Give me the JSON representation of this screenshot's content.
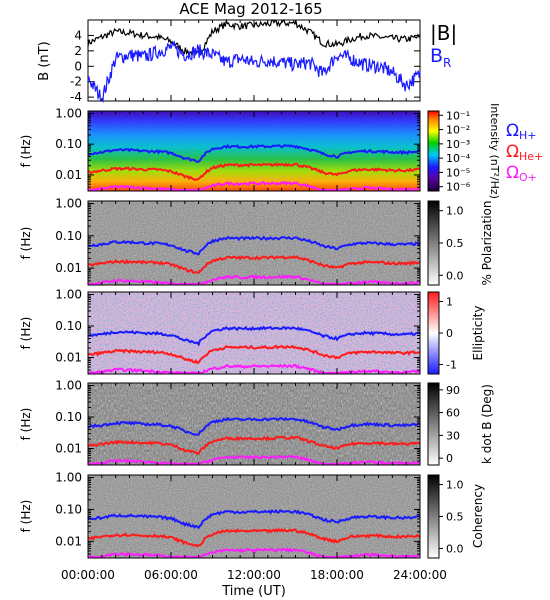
{
  "figure": {
    "title": "ACE Mag 2012-165",
    "xlabel": "Time (UT)",
    "xticks": [
      "00:00:00",
      "06:00:00",
      "12:00:00",
      "18:00:00",
      "24:00:00"
    ]
  },
  "colors": {
    "bmag": "#000000",
    "br": "#1a1aff",
    "h_gyro": "#1a1aff",
    "he_gyro": "#ff1a1a",
    "o_gyro": "#ff1aff"
  },
  "chart_data": [
    {
      "type": "line",
      "panel": "magnetic-field",
      "ylabel": "B (nT)",
      "ylim": [
        -4.5,
        6
      ],
      "yticks": [
        "4",
        "2",
        "0",
        "-2",
        "-4"
      ],
      "x_hours": [
        0,
        1,
        2,
        3,
        4,
        5,
        6,
        7,
        8,
        9,
        10,
        11,
        12,
        13,
        14,
        15,
        16,
        17,
        18,
        19,
        20,
        21,
        22,
        23,
        24
      ],
      "series": [
        {
          "name": "|B|",
          "values": [
            3.0,
            3.8,
            4.5,
            4.3,
            4.0,
            3.8,
            3.2,
            2.0,
            1.5,
            4.5,
            5.5,
            5.2,
            5.3,
            5.5,
            5.6,
            5.6,
            4.5,
            3.0,
            2.8,
            3.5,
            4.0,
            3.8,
            3.6,
            3.5,
            3.8
          ]
        },
        {
          "name": "B_R",
          "values": [
            -1.5,
            -4.2,
            1.0,
            1.5,
            1.2,
            1.8,
            2.5,
            1.5,
            2.0,
            1.5,
            0.5,
            1.0,
            0.5,
            0.8,
            0.5,
            0.2,
            0.5,
            -1.0,
            1.5,
            1.0,
            0.2,
            0.0,
            -0.8,
            -2.5,
            -1.0
          ]
        }
      ]
    },
    {
      "type": "heatmap",
      "panel": "intensity",
      "ylabel": "f (Hz)",
      "yscale": "log",
      "ylim": [
        0.003,
        1.2
      ],
      "yticks": [
        "1.00",
        "0.10",
        "0.01"
      ],
      "colorbar_label": "Intensity (nT²/Hz)",
      "colorbar_ticks": [
        "10⁻¹",
        "10⁻²",
        "10⁻³",
        "10⁻⁴",
        "10⁻⁵",
        "10⁻⁶"
      ]
    },
    {
      "type": "heatmap",
      "panel": "polarization",
      "ylabel": "f (Hz)",
      "yscale": "log",
      "ylim": [
        0.003,
        1.2
      ],
      "yticks": [
        "1.00",
        "0.10",
        "0.01"
      ],
      "colorbar_label": "% Polarization",
      "colorbar_ticks": [
        "1.0",
        "0.5",
        "0.0"
      ]
    },
    {
      "type": "heatmap",
      "panel": "ellipticity",
      "ylabel": "f (Hz)",
      "yscale": "log",
      "ylim": [
        0.003,
        1.2
      ],
      "yticks": [
        "1.00",
        "0.10",
        "0.01"
      ],
      "colorbar_label": "Ellipticity",
      "colorbar_ticks": [
        "1",
        "0",
        "-1"
      ]
    },
    {
      "type": "heatmap",
      "panel": "k-dot-b",
      "ylabel": "f (Hz)",
      "yscale": "log",
      "ylim": [
        0.003,
        1.2
      ],
      "yticks": [
        "1.00",
        "0.10",
        "0.01"
      ],
      "colorbar_label": "k dot B (Deg)",
      "colorbar_ticks": [
        "90",
        "60",
        "30",
        "0"
      ]
    },
    {
      "type": "heatmap",
      "panel": "coherency",
      "ylabel": "f (Hz)",
      "yscale": "log",
      "ylim": [
        0.003,
        1.2
      ],
      "yticks": [
        "1.00",
        "0.10",
        "0.01"
      ],
      "colorbar_label": "Coherency",
      "colorbar_ticks": [
        "1.0",
        "0.5",
        "0.0"
      ]
    }
  ],
  "gyrofrequencies": {
    "x_hours": [
      0,
      1,
      2,
      3,
      4,
      5,
      6,
      7,
      8,
      9,
      10,
      11,
      12,
      13,
      14,
      15,
      16,
      17,
      18,
      19,
      20,
      21,
      22,
      23,
      24
    ],
    "h_plus_hz": [
      0.05,
      0.055,
      0.065,
      0.064,
      0.06,
      0.058,
      0.052,
      0.035,
      0.028,
      0.07,
      0.085,
      0.083,
      0.084,
      0.085,
      0.086,
      0.086,
      0.068,
      0.048,
      0.04,
      0.055,
      0.06,
      0.058,
      0.055,
      0.054,
      0.058
    ],
    "he_plus_hz": [
      0.012,
      0.014,
      0.016,
      0.016,
      0.015,
      0.015,
      0.013,
      0.009,
      0.007,
      0.017,
      0.021,
      0.021,
      0.021,
      0.021,
      0.022,
      0.022,
      0.017,
      0.012,
      0.01,
      0.014,
      0.015,
      0.015,
      0.014,
      0.014,
      0.015
    ],
    "o_plus_hz": [
      0.0031,
      0.0035,
      0.0041,
      0.004,
      0.0038,
      0.0036,
      0.0033,
      0.0031,
      0.0031,
      0.0044,
      0.0053,
      0.0052,
      0.0053,
      0.0053,
      0.0054,
      0.0054,
      0.0043,
      0.0031,
      0.0031,
      0.0034,
      0.0038,
      0.0036,
      0.0034,
      0.0034,
      0.0036
    ]
  },
  "legend": {
    "bmag": "|B|",
    "br_main": "B",
    "br_sub": "R",
    "omega": "Ω",
    "h": "H+",
    "he": "He+",
    "o": "O+"
  }
}
